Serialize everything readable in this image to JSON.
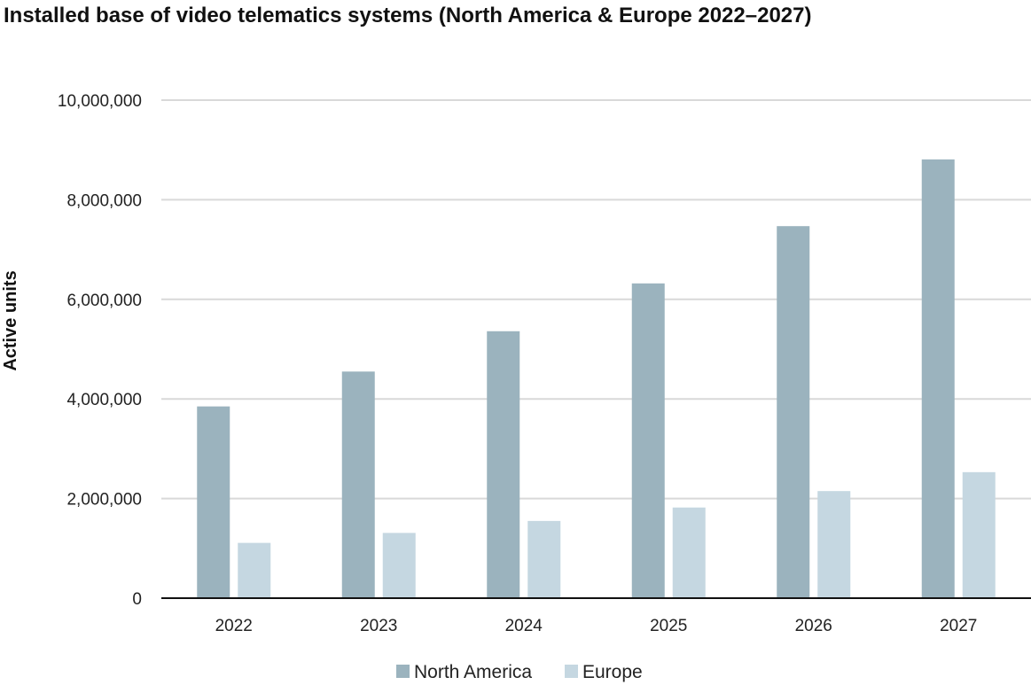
{
  "chart_data": {
    "type": "bar",
    "title": "Installed base of video telematics systems (North America & Europe 2022–2027)",
    "xlabel": "",
    "ylabel": "Active units",
    "categories": [
      "2022",
      "2023",
      "2024",
      "2025",
      "2026",
      "2027"
    ],
    "series": [
      {
        "name": "North America",
        "color": "#9bb3be",
        "values": [
          3850000,
          4550000,
          5360000,
          6320000,
          7470000,
          8810000
        ]
      },
      {
        "name": "Europe",
        "color": "#c5d7e1",
        "values": [
          1110000,
          1310000,
          1550000,
          1820000,
          2150000,
          2530000
        ]
      }
    ],
    "ylim": [
      0,
      10000000
    ],
    "yticks": [
      "0",
      "2,000,000",
      "4,000,000",
      "6,000,000",
      "8,000,000",
      "10,000,000"
    ],
    "grid": true,
    "legend_position": "bottom-center"
  }
}
